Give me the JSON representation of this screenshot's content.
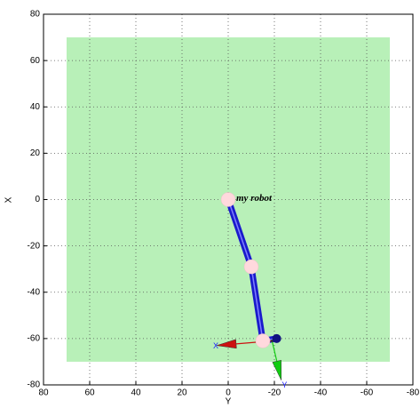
{
  "chart_data": {
    "type": "robot",
    "xlabel": "Y",
    "ylabel": "X",
    "xlim": [
      80,
      -80
    ],
    "ylim": [
      -80,
      80
    ],
    "xticks": [
      80,
      60,
      40,
      20,
      0,
      -20,
      -40,
      -60,
      -80
    ],
    "yticks": [
      -80,
      -60,
      -40,
      -20,
      0,
      20,
      40,
      60,
      80
    ],
    "grid": true,
    "floor": {
      "x": [
        70,
        -70
      ],
      "y": [
        -70,
        70
      ],
      "color": "#b8f0b8"
    },
    "robot": {
      "name": "my robot",
      "color": "#1a1acc",
      "joint_color": "#ffd9dd",
      "x": [
        0,
        -10,
        -15
      ],
      "y": [
        0,
        -29,
        -61
      ]
    },
    "wrist": {
      "x": -21,
      "y": -60,
      "color": "#101080"
    },
    "frame": {
      "origin_x": -19,
      "origin_y": -61,
      "axes": [
        {
          "name": "X",
          "color": "#cc1111",
          "x": 5,
          "y": -63
        },
        {
          "name": "Y",
          "color": "#11cc11",
          "x": -23,
          "y": -78
        }
      ]
    }
  }
}
